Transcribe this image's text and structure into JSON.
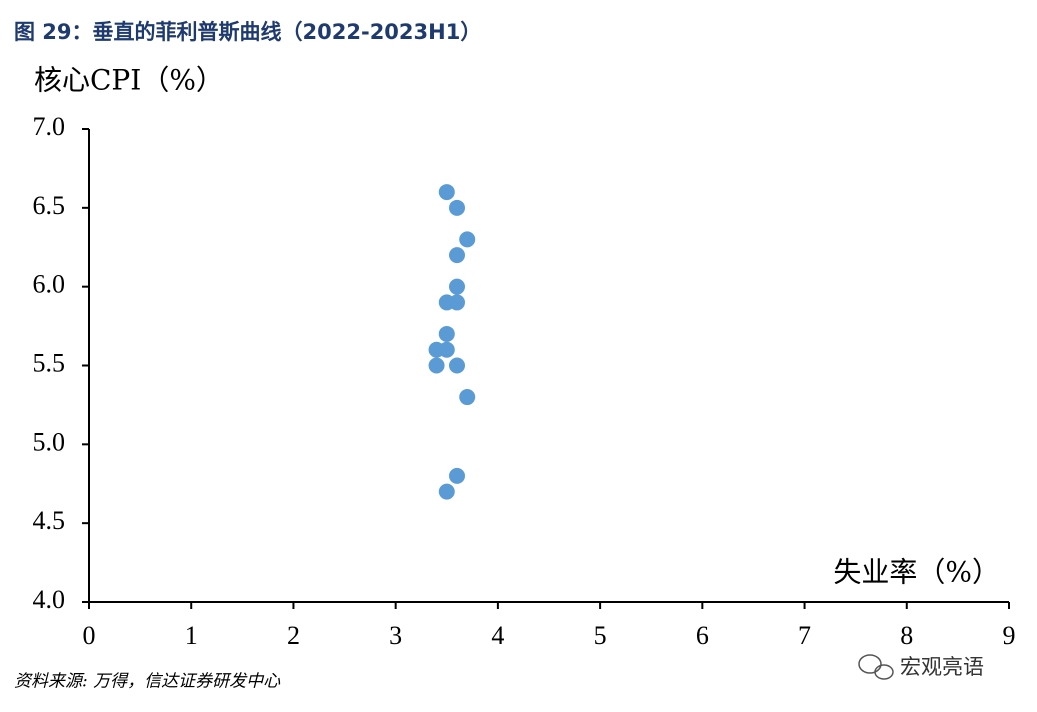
{
  "chart_data": {
    "type": "scatter",
    "title": "图 29：垂直的菲利普斯曲线（2022-2023H1）",
    "y_label": "核心CPI（%）",
    "x_label": "失业率（%）",
    "source": "资料来源: 万得，信达证券研发中心",
    "watermark": "宏观亮语",
    "color": "#5b9bd5",
    "x": [
      3.5,
      3.6,
      3.7,
      3.6,
      3.6,
      3.5,
      3.6,
      3.5,
      3.4,
      3.5,
      3.4,
      3.6,
      3.7,
      3.6,
      3.5
    ],
    "values": [
      6.6,
      6.5,
      6.3,
      6.2,
      6.0,
      5.9,
      5.9,
      5.7,
      5.6,
      5.6,
      5.5,
      5.5,
      5.3,
      4.8,
      4.7
    ],
    "xlim": [
      0,
      9
    ],
    "xticks": [
      0,
      1,
      2,
      3,
      4,
      5,
      6,
      7,
      8,
      9
    ],
    "ylim": [
      4,
      7
    ],
    "yticks": [
      {
        "value": 4,
        "label": "4.0"
      },
      4.5,
      {
        "value": 5,
        "label": "5.0"
      },
      5.5,
      {
        "value": 6,
        "label": "6.0"
      },
      6.5,
      {
        "value": 7,
        "label": "7.0"
      }
    ]
  }
}
